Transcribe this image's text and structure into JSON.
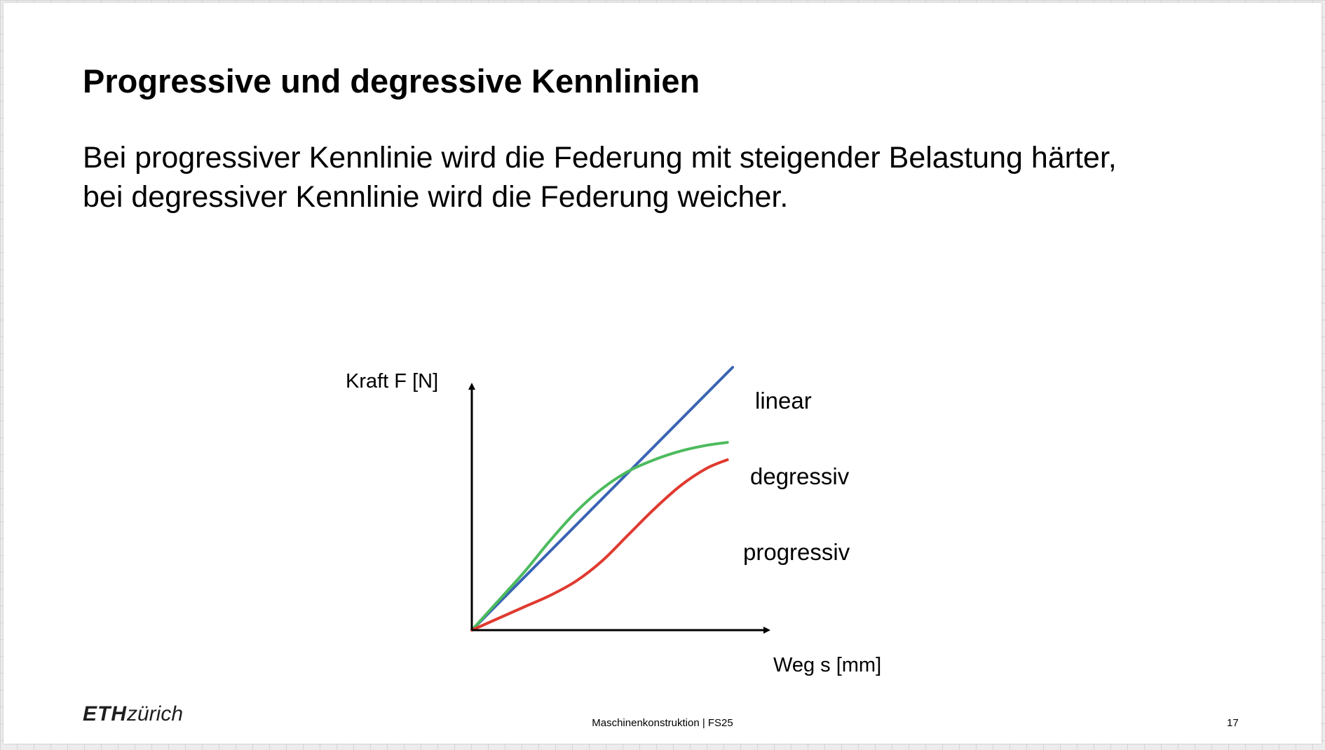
{
  "slide": {
    "title": "Progressive und degressive Kennlinien",
    "body_lines": [
      "Bei progressiver Kennlinie wird die Federung mit steigender Belastung härter,",
      "bei degressiver Kennlinie wird die Federung weicher."
    ],
    "footer": {
      "logo_bold": "ETH",
      "logo_light": "zürich",
      "course": "Maschinenkonstruktion | FS25",
      "page_number": "17"
    }
  },
  "chart_data": {
    "type": "line",
    "title": "",
    "xlabel": "Weg s [mm]",
    "ylabel": "Kraft F [N]",
    "xlim": [
      0,
      1
    ],
    "ylim": [
      0,
      1
    ],
    "grid": false,
    "legend": "inline-right",
    "series": [
      {
        "name": "linear",
        "color": "#3a64b4",
        "x": [
          0,
          1
        ],
        "y": [
          0,
          0.91
        ]
      },
      {
        "name": "degressiv",
        "color": "#4cbb5e",
        "x": [
          0,
          0.1,
          0.2,
          0.3,
          0.4,
          0.5,
          0.6,
          0.7,
          0.8,
          0.9,
          0.98
        ],
        "y": [
          0,
          0.1,
          0.2,
          0.31,
          0.41,
          0.49,
          0.55,
          0.59,
          0.62,
          0.64,
          0.65
        ]
      },
      {
        "name": "progressiv",
        "color": "#e03a2f",
        "x": [
          0,
          0.1,
          0.2,
          0.3,
          0.4,
          0.5,
          0.6,
          0.7,
          0.8,
          0.9,
          0.98
        ],
        "y": [
          0,
          0.04,
          0.08,
          0.12,
          0.17,
          0.24,
          0.33,
          0.42,
          0.5,
          0.56,
          0.59
        ]
      }
    ]
  }
}
